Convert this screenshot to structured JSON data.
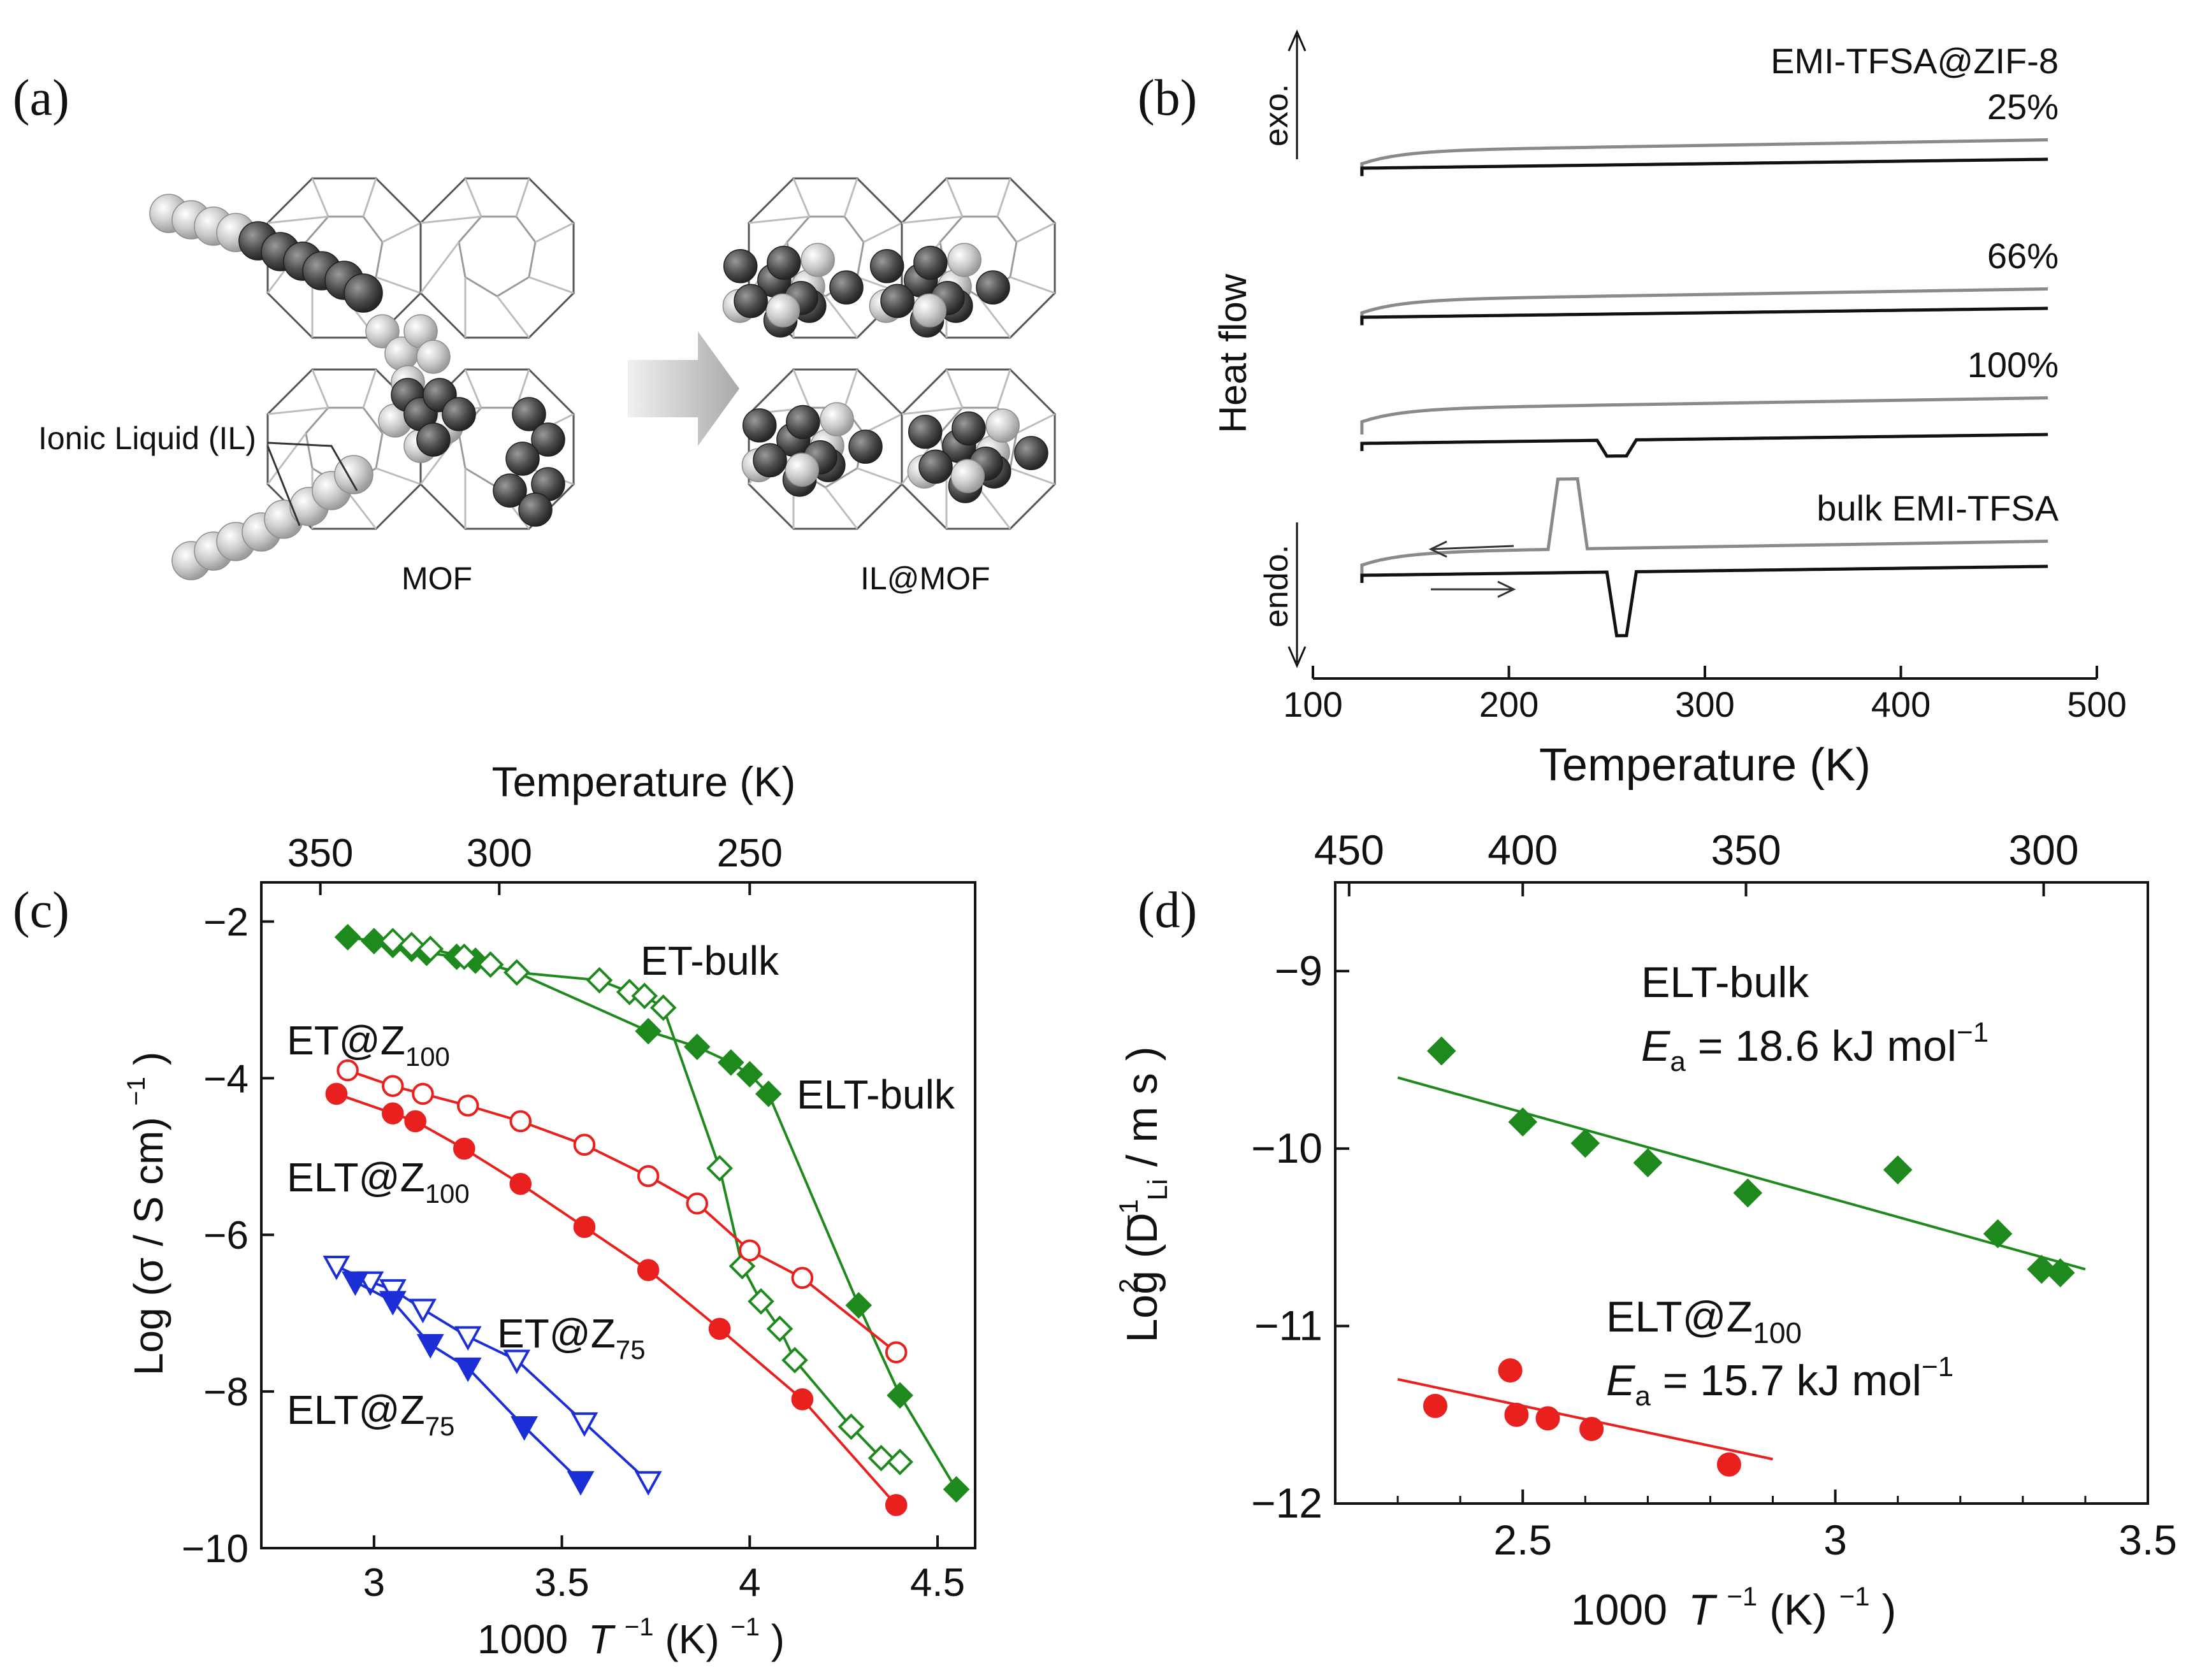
{
  "panels": {
    "a": "(a)",
    "b": "(b)",
    "c": "(c)",
    "d": "(d)"
  },
  "schematic": {
    "il_label": "Ionic Liquid (IL)",
    "mof_label": "MOF",
    "ilmof_label": "IL@MOF"
  },
  "colors": {
    "green": "#1e8a1e",
    "red": "#e8201e",
    "blue": "#1c2fd6",
    "dsc_gray": "#8a8a8a",
    "dsc_black": "#111111"
  },
  "chart_data": [
    {
      "panel": "b",
      "type": "line",
      "xlabel": "Temperature (K)",
      "ylabel": "Heat flow",
      "xlim": [
        100,
        500
      ],
      "xticks": [
        100,
        200,
        300,
        400,
        500
      ],
      "exo_label": "exo.",
      "endo_label": "endo.",
      "legend_title": "EMI-TFSA@ZIF-8",
      "traces": [
        {
          "label": "25%",
          "cooling_offset": 0.92,
          "heating_offset": 0.89
        },
        {
          "label": "66%",
          "cooling_offset": 0.66,
          "heating_offset": 0.63
        },
        {
          "label": "100%",
          "cooling_offset": 0.47,
          "heating_offset": 0.41
        },
        {
          "label": "bulk EMI-TFSA",
          "cooling_offset": 0.22,
          "heating_offset": 0.18,
          "crystallization_peak_K": 230,
          "melting_peak_K": 257
        }
      ]
    },
    {
      "panel": "c",
      "type": "line",
      "xlabel_pre": "1000",
      "xlabel_var": "T",
      "xlabel_post": " (K)",
      "ylabel": "Log (σ / S cm)",
      "top_xlabel": "Temperature (K)",
      "xlim": [
        2.7,
        4.6
      ],
      "ylim": [
        -10,
        -1.5
      ],
      "xticks": [
        3,
        3.5,
        4,
        4.5
      ],
      "yticks": [
        -10,
        -8,
        -6,
        -4,
        -2
      ],
      "top_ticks": [
        350,
        300,
        250
      ],
      "labels": {
        "et_bulk": "ET-bulk",
        "elt_bulk": "ELT-bulk",
        "et_z100": "ET@Z",
        "elt_z100": "ELT@Z",
        "et_z75": "ET@Z",
        "elt_z75": "ELT@Z",
        "sub100": "100",
        "sub75": "75"
      },
      "series": [
        {
          "key": "elt_bulk",
          "color": "green",
          "marker": "diamond",
          "filled": true,
          "x": [
            2.93,
            3.0,
            3.05,
            3.1,
            3.14,
            3.22,
            3.27,
            3.31,
            3.38,
            3.73,
            3.86,
            3.95,
            4.0,
            4.05,
            4.29,
            4.4,
            4.55
          ],
          "y": [
            -2.2,
            -2.25,
            -2.3,
            -2.35,
            -2.4,
            -2.45,
            -2.5,
            -2.55,
            -2.65,
            -3.4,
            -3.6,
            -3.8,
            -3.95,
            -4.2,
            -6.9,
            -8.05,
            -9.25
          ]
        },
        {
          "key": "et_bulk",
          "color": "green",
          "marker": "diamond",
          "filled": false,
          "x": [
            3.05,
            3.1,
            3.15,
            3.24,
            3.31,
            3.38,
            3.6,
            3.68,
            3.72,
            3.77,
            3.92,
            3.98,
            4.03,
            4.08,
            4.12,
            4.27,
            4.35,
            4.4
          ],
          "y": [
            -2.25,
            -2.3,
            -2.35,
            -2.45,
            -2.55,
            -2.65,
            -2.75,
            -2.9,
            -2.95,
            -3.1,
            -5.15,
            -6.4,
            -6.85,
            -7.2,
            -7.6,
            -8.45,
            -8.85,
            -8.9
          ]
        },
        {
          "key": "et_z100",
          "color": "red",
          "marker": "circle",
          "filled": false,
          "x": [
            2.93,
            3.05,
            3.13,
            3.25,
            3.39,
            3.56,
            3.73,
            3.86,
            4.0,
            4.14,
            4.39
          ],
          "y": [
            -3.9,
            -4.1,
            -4.2,
            -4.35,
            -4.55,
            -4.85,
            -5.25,
            -5.6,
            -6.2,
            -6.55,
            -7.5
          ]
        },
        {
          "key": "elt_z100",
          "color": "red",
          "marker": "circle",
          "filled": true,
          "x": [
            2.9,
            3.05,
            3.11,
            3.24,
            3.39,
            3.56,
            3.73,
            3.92,
            4.14,
            4.39
          ],
          "y": [
            -4.2,
            -4.45,
            -4.55,
            -4.9,
            -5.35,
            -5.9,
            -6.45,
            -7.2,
            -8.1,
            -9.45
          ]
        },
        {
          "key": "et_z75",
          "color": "blue",
          "marker": "triangle",
          "filled": false,
          "x": [
            2.9,
            2.99,
            3.05,
            3.13,
            3.25,
            3.38,
            3.56,
            3.73
          ],
          "y": [
            -6.4,
            -6.6,
            -6.7,
            -6.95,
            -7.3,
            -7.6,
            -8.4,
            -9.15
          ]
        },
        {
          "key": "elt_z75",
          "color": "blue",
          "marker": "triangle",
          "filled": true,
          "x": [
            2.95,
            3.05,
            3.15,
            3.25,
            3.4,
            3.55
          ],
          "y": [
            -6.6,
            -6.85,
            -7.4,
            -7.7,
            -8.45,
            -9.15
          ]
        }
      ]
    },
    {
      "panel": "d",
      "type": "scatter",
      "xlabel_pre": "1000",
      "xlabel_var": "T",
      "xlabel_post": " (K)",
      "ylabel": "Log (D",
      "ylabel_sub": "Li",
      "ylabel_post": " / m  s )",
      "xlim": [
        2.2,
        3.5
      ],
      "ylim": [
        -12,
        -8.5
      ],
      "xticks": [
        2.5,
        3,
        3.5
      ],
      "yticks": [
        -12,
        -11,
        -10,
        -9
      ],
      "top_ticks": [
        450,
        400,
        350,
        300
      ],
      "labels": {
        "elt_bulk": "ELT-bulk",
        "elt_bulk_ea_var": "E",
        "elt_bulk_ea_sub": "a",
        "elt_bulk_ea_value": " = 18.6 kJ mol",
        "elt_z100": "ELT@Z",
        "elt_z100_sub": "100",
        "elt_z100_ea_var": "E",
        "elt_z100_ea_sub": "a",
        "elt_z100_ea_value": " = 15.7 kJ mol"
      },
      "series": [
        {
          "key": "elt_bulk",
          "color": "green",
          "marker": "diamond",
          "filled": true,
          "x": [
            2.37,
            2.5,
            2.6,
            2.7,
            2.86,
            3.1,
            3.26,
            3.33,
            3.36
          ],
          "y": [
            -9.45,
            -9.85,
            -9.97,
            -10.08,
            -10.25,
            -10.12,
            -10.48,
            -10.68,
            -10.7
          ],
          "fit": {
            "x": [
              2.3,
              3.4
            ],
            "y": [
              -9.6,
              -10.68
            ]
          }
        },
        {
          "key": "elt_z100",
          "color": "red",
          "marker": "circle",
          "filled": true,
          "x": [
            2.36,
            2.48,
            2.49,
            2.54,
            2.61,
            2.83
          ],
          "y": [
            -11.45,
            -11.25,
            -11.5,
            -11.52,
            -11.58,
            -11.78
          ],
          "fit": {
            "x": [
              2.3,
              2.9
            ],
            "y": [
              -11.3,
              -11.75
            ]
          }
        }
      ]
    }
  ]
}
